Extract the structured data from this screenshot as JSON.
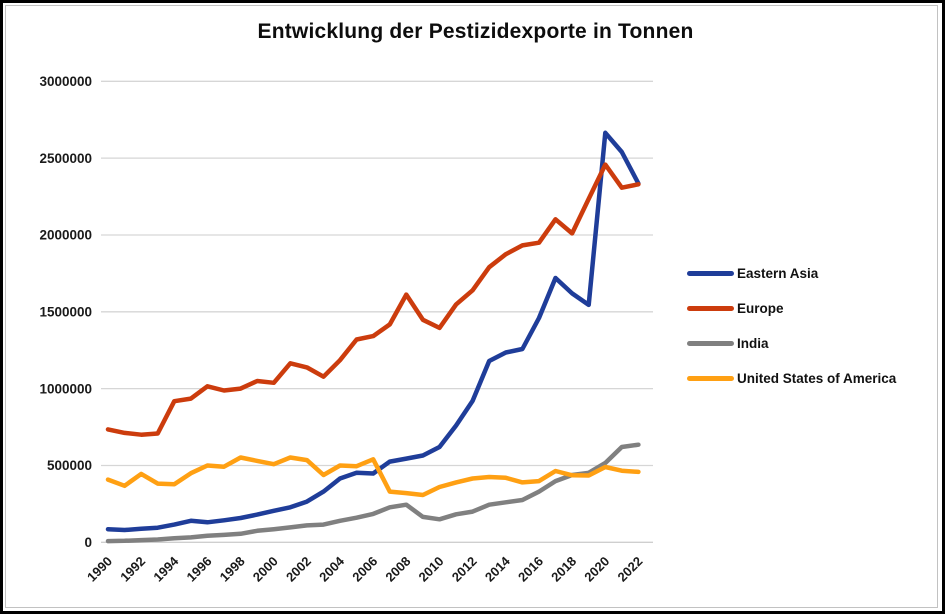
{
  "chart_data": {
    "type": "line",
    "title": "Entwicklung der Pestizidexporte in Tonnen",
    "xlabel": "",
    "ylabel": "",
    "x": [
      1990,
      1991,
      1992,
      1993,
      1994,
      1995,
      1996,
      1997,
      1998,
      1999,
      2000,
      2001,
      2002,
      2003,
      2004,
      2005,
      2006,
      2007,
      2008,
      2009,
      2010,
      2011,
      2012,
      2013,
      2014,
      2015,
      2016,
      2017,
      2018,
      2019,
      2020,
      2021,
      2022
    ],
    "x_tick_labels": [
      "1990",
      "1992",
      "1994",
      "1996",
      "1998",
      "2000",
      "2002",
      "2004",
      "2006",
      "2008",
      "2010",
      "2012",
      "2014",
      "2016",
      "2018",
      "2020",
      "2022"
    ],
    "y_ticks": [
      0,
      500000,
      1000000,
      1500000,
      2000000,
      2500000,
      3000000
    ],
    "y_tick_labels": [
      "0",
      "500000",
      "1000000",
      "1500000",
      "2000000",
      "2500000",
      "3000000"
    ],
    "ylim": [
      0,
      3000000
    ],
    "grid": "horizontal-only",
    "legend_position": "right",
    "series": [
      {
        "name": "Eastern Asia",
        "color": "#1f3d99",
        "values": [
          85000,
          80000,
          88000,
          95000,
          115000,
          140000,
          130000,
          143000,
          158000,
          180000,
          205000,
          228000,
          265000,
          330000,
          415000,
          452000,
          448000,
          525000,
          545000,
          565000,
          620000,
          760000,
          920000,
          1180000,
          1235000,
          1258000,
          1460000,
          1720000,
          1620000,
          1545000,
          2665000,
          2540000,
          2335000
        ]
      },
      {
        "name": "Europe",
        "color": "#cc3c0d",
        "values": [
          735000,
          712000,
          700000,
          708000,
          918000,
          935000,
          1015000,
          988000,
          1000000,
          1050000,
          1038000,
          1165000,
          1138000,
          1078000,
          1185000,
          1320000,
          1342000,
          1418000,
          1612000,
          1448000,
          1395000,
          1548000,
          1640000,
          1790000,
          1875000,
          1932000,
          1950000,
          2102000,
          2010000,
          2235000,
          2458000,
          2308000,
          2330000
        ]
      },
      {
        "name": "India",
        "color": "#808080",
        "values": [
          8000,
          10000,
          14000,
          18000,
          26000,
          32000,
          42000,
          48000,
          55000,
          75000,
          85000,
          97000,
          110000,
          115000,
          140000,
          160000,
          185000,
          228000,
          245000,
          165000,
          150000,
          182000,
          200000,
          245000,
          260000,
          275000,
          330000,
          398000,
          438000,
          452000,
          516000,
          620000,
          635000
        ]
      },
      {
        "name": "United States of America",
        "color": "#ffa013",
        "values": [
          408000,
          368000,
          445000,
          382000,
          378000,
          450000,
          500000,
          492000,
          552000,
          530000,
          508000,
          552000,
          535000,
          438000,
          500000,
          495000,
          540000,
          330000,
          320000,
          308000,
          360000,
          390000,
          415000,
          425000,
          420000,
          390000,
          398000,
          464000,
          436000,
          435000,
          490000,
          466000,
          458000
        ]
      }
    ]
  }
}
